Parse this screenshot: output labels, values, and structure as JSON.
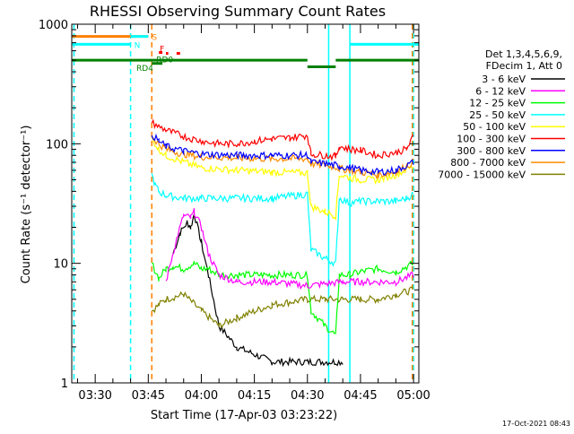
{
  "chart_data": {
    "type": "line",
    "title": "RHESSI Observing Summary Count Rates",
    "xlabel": "Start Time (17-Apr-03 03:23:22)",
    "ylabel": "Count Rate (s⁻¹ detector⁻¹)",
    "yscale": "log",
    "ylim": [
      1,
      1000
    ],
    "xlim": [
      "03:23:22",
      "05:01:30"
    ],
    "x_ticks": [
      "03:30",
      "03:45",
      "04:00",
      "04:15",
      "04:30",
      "04:45",
      "05:00"
    ],
    "y_ticks": [
      "1",
      "10",
      "100",
      "1000"
    ],
    "legend_header": [
      "Det 1,3,4,5,6,9,",
      "FDecim 1, Att 0"
    ],
    "legend_placement": "right",
    "footer": "17-Oct-2021 08:43",
    "series": [
      {
        "name": "3 - 6 keV",
        "color": "#000000",
        "x": [
          "03:48",
          "03:50",
          "03:52",
          "03:54",
          "03:56",
          "03:57",
          "03:58",
          "04:00",
          "04:02",
          "04:05",
          "04:10",
          "04:20",
          "04:30",
          "04:40",
          "04:42"
        ],
        "values": [
          null,
          null,
          12,
          18,
          22,
          20,
          26,
          15,
          8,
          3,
          2,
          1.5,
          1.5,
          1.5,
          null
        ]
      },
      {
        "name": "6 - 12 keV",
        "color": "#ff00ff",
        "x": [
          "03:50",
          "03:53",
          "03:55",
          "03:57",
          "03:58",
          "04:00",
          "04:02",
          "04:05",
          "04:10",
          "04:20",
          "04:30",
          "04:40",
          "04:45",
          "04:55",
          "05:00"
        ],
        "values": [
          7,
          16,
          25,
          24,
          27,
          20,
          12,
          8,
          7,
          7,
          6.5,
          7,
          7,
          7,
          8
        ]
      },
      {
        "name": "12 - 25 keV",
        "color": "#00ff00",
        "x": [
          "03:46",
          "03:48",
          "03:50",
          "03:52",
          "03:55",
          "03:58",
          "04:00",
          "04:02",
          "04:05",
          "04:10",
          "04:20",
          "04:30",
          "04:31",
          "04:35",
          "04:38",
          "04:39",
          "04:42",
          "04:45",
          "04:50",
          "04:55",
          "05:00"
        ],
        "values": [
          10,
          7.5,
          9,
          9.5,
          9,
          10,
          9,
          9,
          8,
          8,
          8,
          8,
          4,
          3,
          2.5,
          8,
          8,
          8.5,
          9,
          8.5,
          10
        ]
      },
      {
        "name": "25 - 50 keV",
        "color": "#00ffff",
        "x": [
          "03:46",
          "03:47",
          "03:48",
          "03:50",
          "03:55",
          "04:00",
          "04:10",
          "04:20",
          "04:30",
          "04:31",
          "04:35",
          "04:38",
          "04:39",
          "04:42",
          "04:45",
          "04:50",
          "04:55",
          "04:58",
          "05:00"
        ],
        "values": [
          55,
          45,
          40,
          37,
          35,
          35,
          35,
          35,
          38,
          13,
          11,
          10,
          35,
          32,
          33,
          33,
          33,
          35,
          38
        ]
      },
      {
        "name": "50 - 100 keV",
        "color": "#ffff00",
        "x": [
          "03:46",
          "03:48",
          "03:50",
          "03:55",
          "04:00",
          "04:10",
          "04:20",
          "04:30",
          "04:31",
          "04:35",
          "04:38",
          "04:39",
          "04:42",
          "04:45",
          "04:50",
          "04:55",
          "05:00"
        ],
        "values": [
          110,
          90,
          80,
          70,
          63,
          60,
          58,
          57,
          30,
          27,
          25,
          55,
          52,
          50,
          50,
          55,
          65
        ]
      },
      {
        "name": "100 - 300 keV",
        "color": "#ff0000",
        "x": [
          "03:46",
          "03:48",
          "03:50",
          "03:55",
          "04:00",
          "04:05",
          "04:10",
          "04:15",
          "04:20",
          "04:25",
          "04:30",
          "04:31",
          "04:35",
          "04:38",
          "04:39",
          "04:42",
          "04:45",
          "04:50",
          "04:55",
          "04:58",
          "05:00"
        ],
        "values": [
          150,
          140,
          130,
          115,
          105,
          100,
          100,
          105,
          110,
          112,
          118,
          82,
          80,
          78,
          95,
          90,
          88,
          80,
          85,
          90,
          115
        ]
      },
      {
        "name": "300 - 800 keV",
        "color": "#0000ff",
        "x": [
          "03:46",
          "03:48",
          "03:50",
          "03:55",
          "04:00",
          "04:10",
          "04:20",
          "04:30",
          "04:31",
          "04:35",
          "04:38",
          "04:39",
          "04:42",
          "04:45",
          "04:50",
          "04:55",
          "05:00"
        ],
        "values": [
          120,
          105,
          95,
          87,
          82,
          80,
          80,
          80,
          70,
          68,
          66,
          65,
          63,
          60,
          58,
          60,
          70
        ]
      },
      {
        "name": "800 - 7000 keV",
        "color": "#ff8c00",
        "x": [
          "03:46",
          "03:48",
          "03:50",
          "03:55",
          "04:00",
          "04:10",
          "04:20",
          "04:30",
          "04:31",
          "04:35",
          "04:38",
          "04:39",
          "04:42",
          "04:45",
          "04:50",
          "04:55",
          "05:00"
        ],
        "values": [
          115,
          100,
          90,
          82,
          78,
          76,
          75,
          75,
          68,
          66,
          64,
          62,
          60,
          58,
          55,
          58,
          70
        ]
      },
      {
        "name": "7000 - 15000 keV",
        "color": "#808000",
        "x": [
          "03:46",
          "03:48",
          "03:50",
          "03:55",
          "04:00",
          "04:05",
          "04:10",
          "04:20",
          "04:30",
          "04:35",
          "04:40",
          "04:45",
          "04:50",
          "04:55",
          "05:00"
        ],
        "values": [
          4,
          4.5,
          5,
          5.5,
          4,
          3,
          3.5,
          4.5,
          5,
          5,
          5,
          5,
          5,
          5.5,
          6
        ]
      }
    ],
    "attenuator_bars": [
      {
        "label": "S",
        "color": "#ff8000",
        "from": "03:23:22",
        "to": "03:45",
        "level": 790
      },
      {
        "label": "N",
        "color": "#00ffff",
        "from": "03:23:22",
        "to": "03:40",
        "level": 680
      },
      {
        "label": "",
        "color": "#00ffff",
        "from": "03:40",
        "to": "03:45",
        "level": 790
      },
      {
        "label": "",
        "color": "#00ffff",
        "from": "04:42",
        "to": "05:01:30",
        "level": 680
      },
      {
        "label": "F",
        "color": "#ff0000",
        "from": "03:48",
        "to": "03:49",
        "level": 580
      },
      {
        "label": "",
        "color": "#ff0000",
        "from": "03:50",
        "to": "03:50:40",
        "level": 570
      },
      {
        "label": "",
        "color": "#ff0000",
        "from": "03:53",
        "to": "03:54",
        "level": 570
      },
      {
        "label": "RD0",
        "color": "#008000",
        "from": "03:46",
        "to": "03:49",
        "level": 470
      },
      {
        "label": "RD4",
        "color": "#008000",
        "from": "03:23:22",
        "to": "04:30",
        "level": 500
      },
      {
        "label": "",
        "color": "#008000",
        "from": "04:30",
        "to": "04:38",
        "level": 440
      },
      {
        "label": "",
        "color": "#008000",
        "from": "04:38",
        "to": "05:01:30",
        "level": 500
      }
    ],
    "vertical_markers": [
      {
        "color": "#00ffff",
        "style": "dashed",
        "x": "03:24"
      },
      {
        "color": "#00ffff",
        "style": "dashed",
        "x": "03:40"
      },
      {
        "color": "#ff8000",
        "style": "dashed",
        "x": "03:46"
      },
      {
        "color": "#00ffff",
        "style": "solid",
        "x": "04:36"
      },
      {
        "color": "#00ffff",
        "style": "solid",
        "x": "04:42"
      },
      {
        "color": "#00ffff",
        "style": "dashed",
        "x": "05:00"
      },
      {
        "color": "#ff8000",
        "style": "dashed",
        "x": "04:59:40"
      }
    ]
  }
}
